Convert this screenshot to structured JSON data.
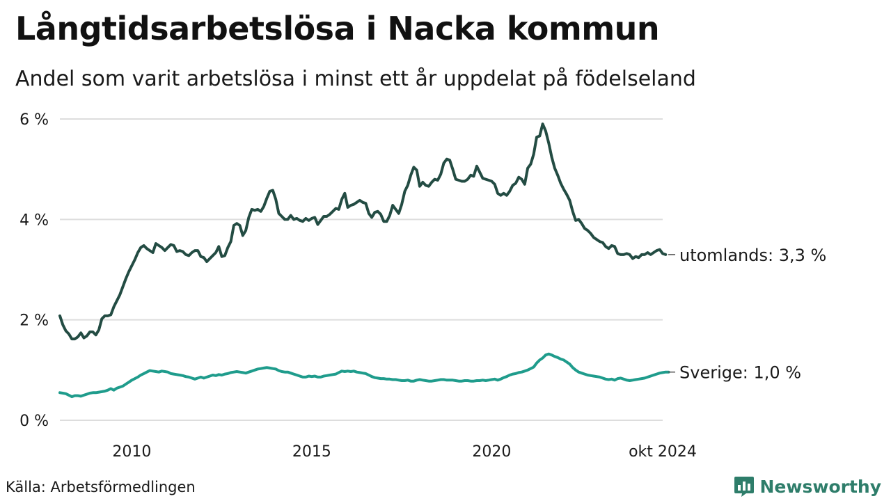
{
  "title": "Långtidsarbetslösa i Nacka kommun",
  "subtitle": "Andel som varit arbetslösa i minst ett år uppdelat på födelseland",
  "source": "Källa: Arbetsförmedlingen",
  "brand": "Newsworthy",
  "colors": {
    "utomlands": "#234c43",
    "sverige": "#1f9c8c",
    "grid": "#dddddd",
    "brand": "#2e7d6a"
  },
  "chart_data": {
    "type": "line",
    "title": "Långtidsarbetslösa i Nacka kommun",
    "subtitle": "Andel som varit arbetslösa i minst ett år uppdelat på födelseland",
    "xlabel": "",
    "ylabel": "",
    "x_start": 2008.0,
    "x_step": 0.08333,
    "xlim": [
      2008.0,
      2024.75
    ],
    "ylim": [
      0,
      6
    ],
    "grid": true,
    "y_ticks": [
      {
        "value": 0,
        "label": "0 %"
      },
      {
        "value": 2,
        "label": "2 %"
      },
      {
        "value": 4,
        "label": "4 %"
      },
      {
        "value": 6,
        "label": "6 %"
      }
    ],
    "x_ticks": [
      {
        "value": 2010,
        "label": "2010"
      },
      {
        "value": 2015,
        "label": "2015"
      },
      {
        "value": 2020,
        "label": "2020"
      },
      {
        "value": 2024.75,
        "label": "okt 2024"
      }
    ],
    "series": [
      {
        "name": "utomlands",
        "end_label": "utomlands: 3,3 %",
        "values": [
          2.08,
          1.9,
          1.78,
          1.72,
          1.62,
          1.62,
          1.66,
          1.74,
          1.64,
          1.68,
          1.76,
          1.76,
          1.7,
          1.8,
          2.02,
          2.08,
          2.08,
          2.1,
          2.26,
          2.38,
          2.5,
          2.66,
          2.82,
          2.96,
          3.08,
          3.2,
          3.34,
          3.44,
          3.48,
          3.42,
          3.38,
          3.34,
          3.52,
          3.48,
          3.44,
          3.38,
          3.44,
          3.5,
          3.48,
          3.36,
          3.38,
          3.36,
          3.3,
          3.28,
          3.34,
          3.38,
          3.38,
          3.26,
          3.24,
          3.16,
          3.22,
          3.28,
          3.34,
          3.46,
          3.26,
          3.28,
          3.44,
          3.56,
          3.88,
          3.92,
          3.88,
          3.68,
          3.78,
          4.04,
          4.2,
          4.18,
          4.2,
          4.16,
          4.26,
          4.42,
          4.56,
          4.58,
          4.4,
          4.12,
          4.06,
          4.0,
          4.0,
          4.08,
          4.0,
          4.02,
          3.98,
          3.96,
          4.02,
          3.98,
          4.02,
          4.04,
          3.9,
          3.98,
          4.06,
          4.06,
          4.1,
          4.16,
          4.22,
          4.2,
          4.4,
          4.52,
          4.24,
          4.28,
          4.3,
          4.34,
          4.38,
          4.34,
          4.32,
          4.12,
          4.04,
          4.14,
          4.16,
          4.1,
          3.96,
          3.96,
          4.08,
          4.28,
          4.2,
          4.12,
          4.3,
          4.56,
          4.68,
          4.88,
          5.04,
          4.98,
          4.66,
          4.74,
          4.68,
          4.66,
          4.74,
          4.8,
          4.78,
          4.9,
          5.12,
          5.2,
          5.18,
          5.0,
          4.8,
          4.78,
          4.76,
          4.76,
          4.8,
          4.88,
          4.86,
          5.06,
          4.94,
          4.82,
          4.8,
          4.78,
          4.76,
          4.7,
          4.52,
          4.48,
          4.52,
          4.48,
          4.56,
          4.68,
          4.72,
          4.84,
          4.8,
          4.7,
          5.02,
          5.1,
          5.3,
          5.64,
          5.66,
          5.9,
          5.76,
          5.52,
          5.24,
          5.02,
          4.88,
          4.72,
          4.6,
          4.5,
          4.38,
          4.16,
          3.98,
          4.0,
          3.92,
          3.82,
          3.78,
          3.72,
          3.64,
          3.6,
          3.56,
          3.54,
          3.46,
          3.42,
          3.48,
          3.46,
          3.32,
          3.3,
          3.3,
          3.32,
          3.3,
          3.22,
          3.26,
          3.24,
          3.3,
          3.3,
          3.34,
          3.3,
          3.34,
          3.38,
          3.4,
          3.32,
          3.3
        ]
      },
      {
        "name": "Sverige",
        "end_label": "Sverige: 1,0 %",
        "values": [
          0.55,
          0.54,
          0.53,
          0.5,
          0.47,
          0.49,
          0.49,
          0.48,
          0.5,
          0.52,
          0.54,
          0.55,
          0.55,
          0.56,
          0.57,
          0.58,
          0.6,
          0.63,
          0.6,
          0.64,
          0.66,
          0.68,
          0.72,
          0.76,
          0.8,
          0.83,
          0.86,
          0.9,
          0.93,
          0.96,
          0.99,
          0.98,
          0.97,
          0.96,
          0.98,
          0.97,
          0.96,
          0.93,
          0.92,
          0.91,
          0.9,
          0.89,
          0.87,
          0.86,
          0.84,
          0.82,
          0.84,
          0.86,
          0.84,
          0.86,
          0.88,
          0.9,
          0.89,
          0.91,
          0.9,
          0.92,
          0.93,
          0.95,
          0.96,
          0.97,
          0.96,
          0.95,
          0.94,
          0.96,
          0.98,
          1.0,
          1.02,
          1.03,
          1.04,
          1.05,
          1.04,
          1.03,
          1.02,
          0.99,
          0.97,
          0.96,
          0.96,
          0.94,
          0.92,
          0.9,
          0.88,
          0.86,
          0.86,
          0.88,
          0.87,
          0.88,
          0.86,
          0.86,
          0.88,
          0.89,
          0.9,
          0.91,
          0.92,
          0.95,
          0.98,
          0.97,
          0.98,
          0.97,
          0.98,
          0.96,
          0.95,
          0.94,
          0.93,
          0.9,
          0.87,
          0.85,
          0.84,
          0.83,
          0.83,
          0.82,
          0.82,
          0.81,
          0.81,
          0.8,
          0.79,
          0.79,
          0.8,
          0.78,
          0.78,
          0.8,
          0.81,
          0.8,
          0.79,
          0.78,
          0.78,
          0.79,
          0.8,
          0.81,
          0.81,
          0.8,
          0.8,
          0.8,
          0.79,
          0.78,
          0.78,
          0.79,
          0.79,
          0.78,
          0.78,
          0.79,
          0.79,
          0.8,
          0.79,
          0.8,
          0.81,
          0.82,
          0.8,
          0.82,
          0.85,
          0.87,
          0.9,
          0.92,
          0.93,
          0.95,
          0.96,
          0.98,
          1.0,
          1.03,
          1.06,
          1.14,
          1.2,
          1.24,
          1.3,
          1.32,
          1.3,
          1.27,
          1.25,
          1.22,
          1.2,
          1.16,
          1.12,
          1.05,
          1.0,
          0.96,
          0.94,
          0.92,
          0.9,
          0.89,
          0.88,
          0.87,
          0.86,
          0.84,
          0.82,
          0.81,
          0.82,
          0.8,
          0.83,
          0.84,
          0.82,
          0.8,
          0.79,
          0.8,
          0.81,
          0.82,
          0.83,
          0.84,
          0.86,
          0.88,
          0.9,
          0.92,
          0.94,
          0.95,
          0.96,
          0.96
        ]
      }
    ]
  }
}
